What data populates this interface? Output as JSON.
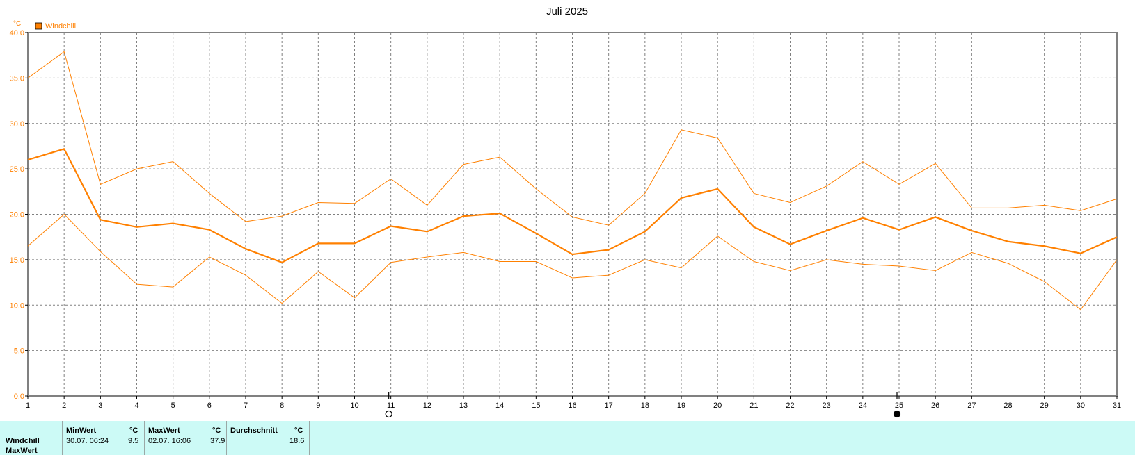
{
  "chart_data": {
    "type": "line",
    "title": "Juli 2025",
    "ylabel": "°C",
    "xlabel": "",
    "ylim": [
      0,
      40
    ],
    "yticks": [
      "0.0",
      "5.0",
      "10.0",
      "15.0",
      "20.0",
      "25.0",
      "30.0",
      "35.0",
      "40.0"
    ],
    "x": [
      1,
      2,
      3,
      4,
      5,
      6,
      7,
      8,
      9,
      10,
      11,
      12,
      13,
      14,
      15,
      16,
      17,
      18,
      19,
      20,
      21,
      22,
      23,
      24,
      25,
      26,
      27,
      28,
      29,
      30,
      31
    ],
    "grid": true,
    "legend": {
      "label": "Windchill",
      "position": "top-left",
      "color": "#ff8000"
    },
    "series": [
      {
        "name": "Windchill",
        "role": "max",
        "color": "#ff8000",
        "values": [
          35.0,
          37.9,
          23.3,
          25.0,
          25.8,
          22.3,
          19.2,
          19.8,
          21.3,
          21.2,
          23.9,
          21.0,
          25.5,
          26.3,
          22.8,
          19.7,
          18.8,
          22.3,
          29.3,
          28.4,
          22.3,
          21.3,
          23.1,
          25.8,
          23.3,
          25.6,
          20.7,
          20.7,
          21.0,
          20.4,
          21.7
        ]
      },
      {
        "name": "Windchill",
        "role": "avg",
        "color": "#ff8000",
        "values": [
          26.0,
          27.2,
          19.4,
          18.6,
          19.0,
          18.3,
          16.2,
          14.7,
          16.8,
          16.8,
          18.7,
          18.1,
          19.8,
          20.1,
          17.9,
          15.6,
          16.1,
          18.1,
          21.8,
          22.8,
          18.6,
          16.7,
          18.2,
          19.6,
          18.3,
          19.7,
          18.2,
          17.0,
          16.5,
          15.7,
          17.5
        ]
      },
      {
        "name": "Windchill",
        "role": "min",
        "color": "#ff8000",
        "values": [
          16.5,
          20.0,
          15.9,
          12.3,
          12.0,
          15.3,
          13.3,
          10.2,
          13.7,
          10.8,
          14.7,
          15.3,
          15.8,
          14.8,
          14.8,
          13.0,
          13.3,
          15.0,
          14.1,
          17.6,
          14.8,
          13.8,
          15.0,
          14.5,
          14.3,
          13.8,
          15.8,
          14.6,
          12.6,
          9.5,
          15.0
        ]
      }
    ],
    "moon_markers": [
      {
        "day": 11,
        "phase": "full-moon-icon"
      },
      {
        "day": 25,
        "phase": "new-moon-icon"
      }
    ]
  },
  "stats": {
    "row_label": "Windchill",
    "row_label_2": "MaxWert",
    "min_header": "MinWert",
    "min_unit": "°C",
    "min_date": "30.07.  06:24",
    "min_value": "9.5",
    "max_header": "MaxWert",
    "max_unit": "°C",
    "max_date": "02.07.  16:06",
    "max_value": "37.9",
    "avg_header": "Durchschnitt",
    "avg_unit": "°C",
    "avg_value": "18.6"
  }
}
